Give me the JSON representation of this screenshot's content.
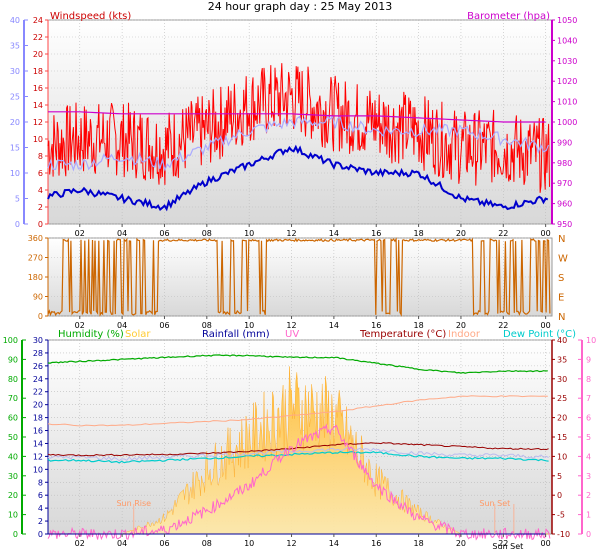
{
  "title": "24 hour graph day : 25 May 2013",
  "colors": {
    "wind": "#ff0000",
    "gust_outline": "#aaaaff",
    "avg_wind": "#0000cc",
    "baro": "#cc00cc",
    "dir": "#cc6600",
    "humidity": "#00aa00",
    "solar": "#ffcc33",
    "rain": "#000099",
    "uv": "#ff66cc",
    "temp": "#990000",
    "indoor": "#ffaa88",
    "dewpoint": "#00cccc",
    "axis_blue": "#8888ff"
  },
  "x_ticks": [
    "02",
    "04",
    "06",
    "08",
    "10",
    "12",
    "14",
    "16",
    "18",
    "20",
    "22",
    "00"
  ],
  "chart_data": [
    {
      "type": "line",
      "panel": "wind",
      "ylabel": "Windspeed (kts)",
      "ylim": [
        0,
        24
      ],
      "y_ticks_inner": [
        "0",
        "2",
        "4",
        "6",
        "8",
        "10",
        "12",
        "14",
        "16",
        "18",
        "20",
        "22",
        "24"
      ],
      "y_ticks_outer": [
        "0",
        "5",
        "10",
        "15",
        "20",
        "25",
        "30",
        "35",
        "40"
      ],
      "y2label": "Barometer (hpa)",
      "y2lim": [
        950,
        1050
      ],
      "y2_ticks": [
        "950",
        "960",
        "970",
        "980",
        "990",
        "1000",
        "1010",
        "1020",
        "1030",
        "1040",
        "1050"
      ],
      "x": [
        0,
        2,
        4,
        6,
        8,
        10,
        12,
        14,
        16,
        18,
        20,
        22,
        24
      ],
      "series": [
        {
          "values": [
            9,
            10,
            10,
            9,
            11,
            14,
            15,
            13,
            12,
            11,
            9,
            9,
            8
          ]
        },
        {
          "values": [
            7,
            7,
            8,
            7,
            9,
            11,
            12,
            12,
            11,
            11,
            11,
            10,
            9
          ]
        },
        {
          "values": [
            3,
            4,
            3,
            2,
            5,
            7,
            9,
            7,
            6,
            6,
            3,
            2,
            3
          ]
        },
        {
          "values": [
            1005,
            1005,
            1004,
            1004,
            1004,
            1004,
            1004,
            1003,
            1003,
            1002,
            1001,
            1000,
            1000
          ]
        }
      ]
    },
    {
      "type": "line",
      "panel": "direction",
      "ylim": [
        0,
        360
      ],
      "y_ticks": [
        "0",
        "90",
        "180",
        "270",
        "360"
      ],
      "compass": [
        "N",
        "W",
        "S",
        "E",
        "N"
      ],
      "x": [
        0,
        2,
        4,
        6,
        8,
        10,
        12,
        14,
        16,
        18,
        20,
        22,
        24
      ],
      "series": [
        {
          "values": [
            350,
            10,
            350,
            20,
            350,
            5,
            345,
            350,
            350,
            355,
            350,
            15,
            340
          ]
        }
      ]
    },
    {
      "type": "line",
      "panel": "climate",
      "legend": [
        "Humidity (%)",
        "Solar",
        "Rainfall (mm)",
        "UV",
        "Temperature (°C)",
        "Indoor",
        "Dew Point (°C)"
      ],
      "ylim_humidity": [
        0,
        100
      ],
      "y_ticks_humidity": [
        "0",
        "10",
        "20",
        "30",
        "40",
        "50",
        "60",
        "70",
        "80",
        "90",
        "100"
      ],
      "ylim_rain": [
        0,
        30
      ],
      "y_ticks_rain": [
        "0",
        "2",
        "4",
        "6",
        "8",
        "10",
        "12",
        "14",
        "16",
        "18",
        "20",
        "22",
        "24",
        "26",
        "28",
        "30"
      ],
      "ylim_temp": [
        -10,
        40
      ],
      "y_ticks_temp": [
        "-10",
        "-5",
        "0",
        "5",
        "10",
        "15",
        "20",
        "25",
        "30",
        "35",
        "40"
      ],
      "ylim_uv": [
        0,
        10
      ],
      "y_ticks_uv": [
        "0",
        "1",
        "2",
        "3",
        "4",
        "5",
        "6",
        "7",
        "8",
        "9",
        "10"
      ],
      "annotations": [
        "Sun Rise",
        "Sun Set",
        "Sun Set"
      ],
      "x": [
        0,
        2,
        4,
        6,
        8,
        10,
        12,
        14,
        16,
        18,
        20,
        22,
        24
      ],
      "series": [
        {
          "values": [
            88,
            89,
            90,
            91,
            92,
            92,
            91,
            91,
            88,
            85,
            83,
            84,
            84
          ]
        },
        {
          "values": [
            0,
            0,
            0,
            3,
            12,
            18,
            24,
            22,
            10,
            4,
            0,
            0,
            0
          ]
        },
        {
          "values": [
            0,
            0,
            0,
            0,
            0,
            0,
            0,
            0,
            0,
            0,
            0,
            0,
            0
          ]
        },
        {
          "values": [
            0,
            0,
            0,
            0.2,
            1.2,
            2.5,
            4.5,
            5.5,
            2.5,
            0.8,
            0,
            0,
            0
          ]
        },
        {
          "values": [
            10.5,
            10.3,
            10.4,
            10.5,
            10.8,
            11.3,
            12,
            13,
            13.5,
            13,
            12.5,
            12,
            11.9
          ]
        },
        {
          "values": [
            18.5,
            18,
            18,
            18.5,
            19,
            19.5,
            20.5,
            21.5,
            23,
            24.5,
            25.5,
            25.5,
            25.5
          ]
        },
        {
          "values": [
            9,
            9,
            8.5,
            9,
            9.5,
            10,
            10.5,
            11,
            11,
            10,
            9.5,
            9.5,
            9
          ]
        }
      ]
    }
  ]
}
